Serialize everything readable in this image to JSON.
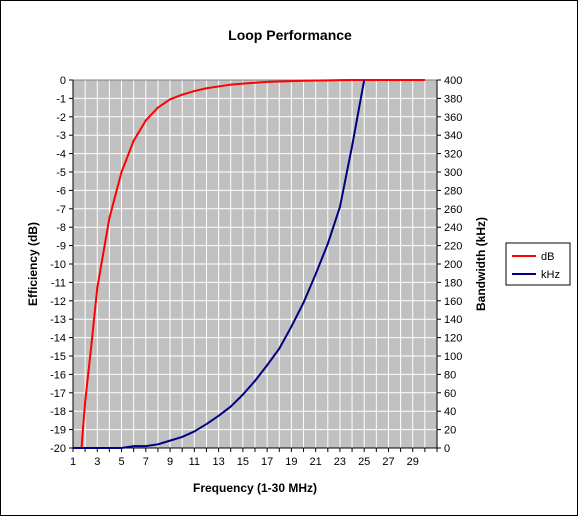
{
  "chart_data": {
    "type": "line",
    "title": "Loop Performance",
    "xlabel": "Frequency (1-30 MHz)",
    "ylabel_left": "Efficiency (dB)",
    "ylabel_right": "Bandwidth (kHz)",
    "x_categories": [
      "1",
      "2",
      "3",
      "4",
      "5",
      "6",
      "7",
      "8",
      "9",
      "10",
      "11",
      "12",
      "13",
      "14",
      "15",
      "16",
      "17",
      "18",
      "19",
      "20",
      "21",
      "22",
      "23",
      "24",
      "25",
      "26",
      "27",
      "28",
      "29",
      "30"
    ],
    "x_tick_labels": [
      "1",
      "3",
      "5",
      "7",
      "9",
      "11",
      "13",
      "15",
      "17",
      "19",
      "21",
      "23",
      "25",
      "27",
      "29"
    ],
    "y_left_range": [
      -20,
      0
    ],
    "y_left_ticks": [
      "0",
      "-1",
      "-2",
      "-3",
      "-4",
      "-5",
      "-6",
      "-7",
      "-8",
      "-9",
      "-10",
      "-11",
      "-12",
      "-13",
      "-14",
      "-15",
      "-16",
      "-17",
      "-18",
      "-19",
      "-20"
    ],
    "y_right_range": [
      0,
      400
    ],
    "y_right_ticks": [
      "400",
      "380",
      "360",
      "340",
      "320",
      "300",
      "280",
      "260",
      "240",
      "220",
      "200",
      "180",
      "160",
      "140",
      "120",
      "100",
      "80",
      "60",
      "40",
      "20",
      "0"
    ],
    "grid": true,
    "legend_position": "right",
    "series": [
      {
        "name": "dB",
        "axis": "left",
        "color": "#ff0000",
        "x": [
          1.7,
          2,
          2.5,
          3,
          4,
          5,
          6,
          7,
          8,
          9,
          10,
          11,
          12,
          13,
          14,
          15,
          16,
          17,
          18,
          19,
          20,
          21,
          22,
          23,
          24,
          25,
          26,
          27,
          28,
          29,
          30
        ],
        "values": [
          -20,
          -17.5,
          -14.5,
          -11.3,
          -7.5,
          -5.0,
          -3.3,
          -2.2,
          -1.5,
          -1.05,
          -0.8,
          -0.6,
          -0.45,
          -0.35,
          -0.25,
          -0.2,
          -0.15,
          -0.1,
          -0.08,
          -0.06,
          -0.04,
          -0.03,
          -0.02,
          -0.01,
          0,
          0,
          0,
          0,
          0,
          0,
          0
        ]
      },
      {
        "name": "kHz",
        "axis": "right",
        "color": "#000080",
        "x": [
          1,
          2,
          3,
          4,
          5,
          6,
          7,
          8,
          9,
          10,
          11,
          12,
          13,
          14,
          15,
          16,
          17,
          18,
          19,
          20,
          21,
          22,
          23,
          24,
          25
        ],
        "values": [
          0,
          0,
          0,
          0,
          0,
          2,
          2,
          4,
          8,
          12,
          18,
          26,
          35,
          45,
          58,
          73,
          90,
          108,
          132,
          158,
          189,
          222,
          262,
          328,
          400
        ]
      }
    ]
  }
}
